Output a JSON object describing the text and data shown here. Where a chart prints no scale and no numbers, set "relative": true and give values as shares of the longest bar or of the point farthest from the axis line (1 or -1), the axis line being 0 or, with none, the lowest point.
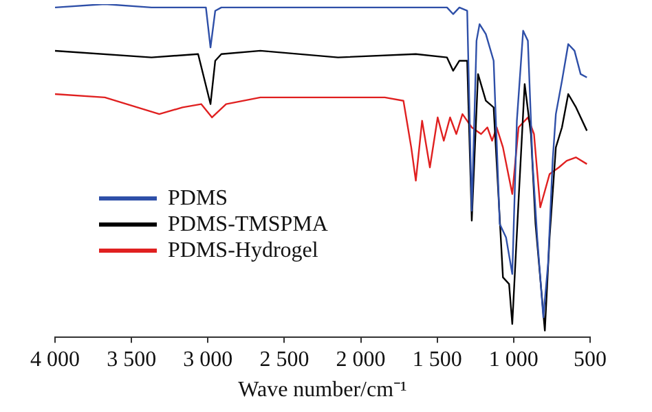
{
  "chart_data": {
    "type": "line",
    "relative": true,
    "xlabel": "Wave number/cm⁻¹",
    "xlim": [
      4000,
      500
    ],
    "xticks": [
      {
        "value": 4000,
        "label": "4 000"
      },
      {
        "value": 3500,
        "label": "3 500"
      },
      {
        "value": 3000,
        "label": "3 000"
      },
      {
        "value": 2500,
        "label": "2 500"
      },
      {
        "value": 2000,
        "label": "2 000"
      },
      {
        "value": 1500,
        "label": "1 500"
      },
      {
        "value": 1000,
        "label": "1 000"
      },
      500
    ],
    "legend": "center left",
    "grid": false,
    "marker": "none",
    "line_style": "solid",
    "series": [
      {
        "name": "PDMS",
        "color": "#2e4fa8",
        "x": [
          4000,
          3674,
          3369,
          3064,
          3013,
          2983,
          2952,
          2912,
          2657,
          2149,
          1640,
          1436,
          1396,
          1355,
          1304,
          1274,
          1243,
          1223,
          1182,
          1131,
          1091,
          1050,
          1009,
          979,
          938,
          907,
          877,
          846,
          806,
          775,
          745,
          724,
          684,
          643,
          602,
          562,
          521
        ],
        "values": [
          0.99,
          1.0,
          0.99,
          0.99,
          0.99,
          0.87,
          0.98,
          0.99,
          0.99,
          0.99,
          0.99,
          0.99,
          0.97,
          0.99,
          0.98,
          0.38,
          0.89,
          0.94,
          0.91,
          0.83,
          0.34,
          0.3,
          0.19,
          0.65,
          0.92,
          0.89,
          0.53,
          0.3,
          0.06,
          0.22,
          0.53,
          0.67,
          0.77,
          0.88,
          0.86,
          0.79,
          0.78
        ]
      },
      {
        "name": "PDMS-TMSPMA",
        "color": "#000000",
        "x": [
          4000,
          3369,
          3064,
          2983,
          2952,
          2912,
          2657,
          2149,
          1640,
          1436,
          1396,
          1355,
          1304,
          1274,
          1233,
          1182,
          1131,
          1070,
          1030,
          1009,
          968,
          928,
          887,
          857,
          796,
          765,
          724,
          684,
          643,
          592,
          521
        ],
        "values": [
          0.86,
          0.84,
          0.85,
          0.7,
          0.83,
          0.85,
          0.86,
          0.84,
          0.85,
          0.84,
          0.8,
          0.83,
          0.83,
          0.35,
          0.79,
          0.71,
          0.69,
          0.18,
          0.16,
          0.04,
          0.41,
          0.76,
          0.61,
          0.34,
          0.02,
          0.3,
          0.57,
          0.63,
          0.73,
          0.69,
          0.62
        ]
      },
      {
        "name": "PDMS-Hydrogel",
        "color": "#e02020",
        "x": [
          4000,
          3674,
          3318,
          3166,
          3044,
          2973,
          2881,
          2657,
          1843,
          1721,
          1670,
          1640,
          1599,
          1548,
          1497,
          1457,
          1416,
          1375,
          1335,
          1274,
          1213,
          1172,
          1141,
          1111,
          1070,
          1009,
          968,
          907,
          867,
          826,
          765,
          704,
          653,
          592,
          521
        ],
        "values": [
          0.73,
          0.72,
          0.67,
          0.69,
          0.7,
          0.66,
          0.7,
          0.72,
          0.72,
          0.71,
          0.57,
          0.47,
          0.65,
          0.51,
          0.66,
          0.59,
          0.66,
          0.61,
          0.67,
          0.63,
          0.61,
          0.63,
          0.59,
          0.63,
          0.57,
          0.43,
          0.63,
          0.66,
          0.61,
          0.39,
          0.49,
          0.51,
          0.53,
          0.54,
          0.52
        ]
      }
    ]
  }
}
